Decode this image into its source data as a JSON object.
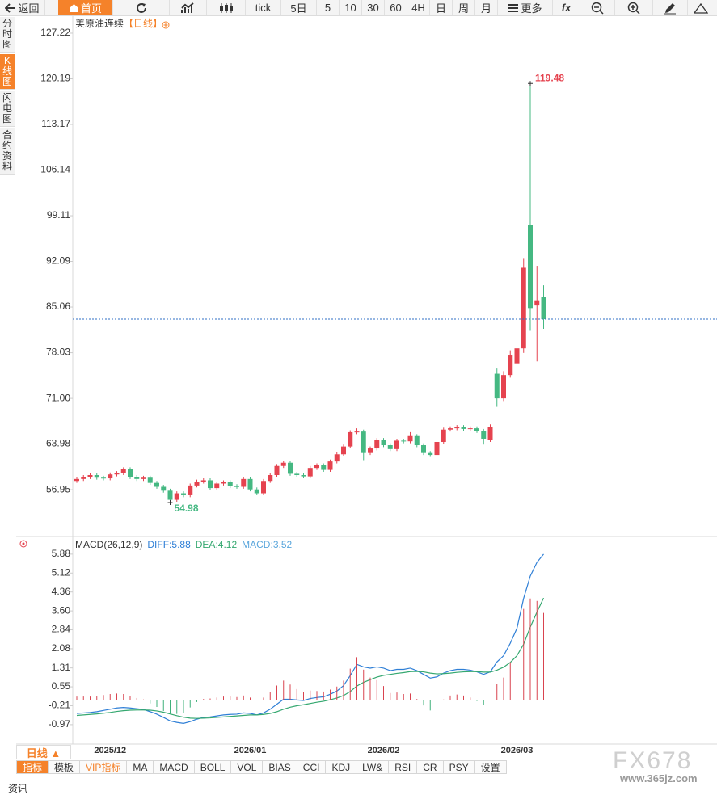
{
  "toolbar": {
    "back": "返回",
    "home": "首页",
    "periods": [
      "tick",
      "5日",
      "5",
      "10",
      "30",
      "60",
      "4H",
      "日",
      "周",
      "月"
    ],
    "more": "更多",
    "fx": "fx"
  },
  "side_tabs": [
    "分时图",
    "K线图",
    "闪电图",
    "合约资料"
  ],
  "chart_data": [
    {
      "type": "candlestick",
      "title": "美原油连续",
      "period": "【日线】",
      "categories": [
        null,
        null,
        null,
        null,
        null,
        "2025/12",
        null,
        null,
        null,
        null,
        null,
        null,
        null,
        null,
        null,
        null,
        null,
        null,
        null,
        null,
        null,
        null,
        null,
        null,
        null,
        null,
        "2026/01",
        null,
        null,
        null,
        null,
        null,
        null,
        null,
        null,
        null,
        null,
        null,
        null,
        null,
        null,
        null,
        null,
        null,
        null,
        null,
        "2026/02",
        null,
        null,
        null,
        null,
        null,
        null,
        null,
        null,
        null,
        null,
        null,
        null,
        null,
        null,
        null,
        null,
        null,
        null,
        null,
        "2026/03",
        null,
        null,
        null,
        null
      ],
      "open": [
        58.3,
        58.6,
        58.9,
        59.2,
        58.8,
        58.7,
        59.3,
        59.5,
        60.1,
        58.9,
        58.6,
        58.8,
        58.0,
        57.4,
        56.8,
        55.4,
        56.4,
        56.1,
        57.6,
        58.2,
        58.4,
        57.2,
        57.9,
        58.1,
        57.5,
        57.4,
        58.6,
        57.0,
        56.4,
        58.3,
        59.2,
        60.6,
        61.1,
        59.4,
        59.2,
        59.0,
        60.3,
        60.7,
        60.0,
        61.3,
        62.4,
        63.6,
        65.8,
        65.9,
        62.6,
        63.3,
        64.6,
        63.8,
        63.2,
        64.5,
        64.4,
        65.2,
        63.8,
        62.6,
        62.3,
        64.3,
        66.2,
        66.4,
        66.6,
        66.3,
        66.4,
        66.0,
        64.6,
        74.8,
        71.0,
        74.6,
        76.4,
        78.7,
        97.7,
        85.3,
        86.6
      ],
      "high": [
        58.9,
        59.2,
        59.5,
        59.5,
        59.1,
        59.6,
        59.8,
        60.4,
        60.4,
        59.2,
        59.1,
        59.1,
        58.3,
        57.7,
        57.1,
        56.7,
        56.7,
        57.9,
        58.5,
        58.7,
        58.7,
        58.2,
        58.4,
        58.4,
        57.8,
        58.9,
        58.9,
        57.3,
        58.6,
        59.5,
        60.9,
        61.4,
        61.4,
        59.7,
        59.5,
        60.6,
        61.0,
        61.0,
        61.6,
        62.7,
        63.9,
        66.1,
        66.4,
        66.2,
        63.6,
        64.9,
        64.9,
        64.1,
        64.8,
        64.8,
        65.8,
        65.5,
        64.1,
        62.9,
        64.6,
        66.5,
        66.7,
        66.9,
        66.9,
        66.7,
        66.7,
        66.3,
        67.0,
        75.6,
        75.2,
        78.4,
        80.2,
        92.6,
        119.48,
        91.4,
        88.4
      ],
      "low": [
        58.0,
        58.3,
        58.6,
        58.5,
        58.4,
        58.4,
        59.0,
        59.2,
        58.6,
        58.3,
        58.3,
        57.7,
        57.1,
        56.5,
        54.98,
        55.1,
        55.8,
        55.8,
        57.3,
        57.9,
        56.9,
        56.9,
        57.6,
        57.2,
        57.1,
        57.1,
        56.7,
        56.1,
        56.1,
        58.0,
        58.9,
        60.3,
        59.1,
        58.9,
        58.7,
        58.7,
        60.0,
        59.7,
        59.7,
        61.0,
        62.1,
        63.3,
        65.5,
        61.5,
        62.3,
        63.0,
        63.5,
        62.9,
        62.9,
        64.1,
        64.1,
        63.5,
        62.3,
        62.0,
        62.0,
        64.0,
        65.9,
        66.1,
        66.0,
        66.0,
        65.7,
        63.9,
        64.3,
        69.7,
        70.6,
        74.2,
        75.8,
        78.0,
        81.4,
        76.7,
        81.7
      ],
      "close": [
        58.6,
        58.9,
        59.2,
        58.8,
        58.7,
        59.3,
        59.5,
        60.1,
        58.9,
        58.6,
        58.8,
        58.0,
        57.4,
        56.8,
        55.4,
        56.4,
        56.1,
        57.6,
        58.2,
        58.4,
        57.2,
        57.9,
        58.1,
        57.5,
        57.4,
        58.6,
        57.0,
        56.4,
        58.3,
        59.2,
        60.6,
        61.1,
        59.4,
        59.2,
        59.0,
        60.3,
        60.7,
        60.0,
        61.3,
        62.4,
        63.6,
        65.8,
        65.9,
        62.6,
        63.3,
        64.6,
        63.8,
        63.2,
        64.5,
        64.4,
        65.2,
        63.8,
        62.6,
        62.3,
        64.3,
        66.2,
        66.4,
        66.6,
        66.3,
        66.4,
        66.0,
        64.8,
        66.6,
        71.0,
        74.6,
        77.6,
        78.7,
        91.1,
        84.9,
        86.1,
        83.2
      ],
      "up_color": "#e5434f",
      "down_color": "#45b882",
      "last_line_color": "#2f6fc4",
      "ylim": [
        50.0,
        129.58
      ],
      "yticks": [
        56.95,
        63.98,
        {
          "value": 71,
          "label": "71.00"
        },
        78.03,
        85.06,
        92.09,
        99.11,
        106.14,
        113.17,
        120.19,
        127.22
      ]
    },
    {
      "type": "macd",
      "title": "MACD(26,12,9)",
      "separator": ":",
      "series": [
        {
          "name": "DIFF",
          "type": "line",
          "color": "#2f7fd6",
          "values": [
            -0.52,
            -0.5,
            -0.48,
            -0.45,
            -0.4,
            -0.35,
            -0.3,
            -0.28,
            -0.3,
            -0.33,
            -0.36,
            -0.45,
            -0.55,
            -0.68,
            -0.82,
            -0.88,
            -0.92,
            -0.85,
            -0.75,
            -0.68,
            -0.66,
            -0.62,
            -0.58,
            -0.56,
            -0.55,
            -0.5,
            -0.52,
            -0.58,
            -0.5,
            -0.35,
            -0.15,
            0.05,
            0.05,
            0.02,
            0.0,
            0.08,
            0.12,
            0.15,
            0.25,
            0.38,
            0.6,
            1.0,
            1.45,
            1.35,
            1.3,
            1.35,
            1.3,
            1.2,
            1.25,
            1.25,
            1.3,
            1.2,
            1.05,
            0.9,
            0.95,
            1.1,
            1.2,
            1.25,
            1.25,
            1.22,
            1.15,
            1.05,
            1.15,
            1.55,
            1.8,
            2.3,
            2.9,
            4.1,
            5.0,
            5.55,
            5.88
          ]
        },
        {
          "name": "DEA",
          "type": "line",
          "color": "#35a870",
          "values": [
            -0.6,
            -0.58,
            -0.56,
            -0.54,
            -0.51,
            -0.48,
            -0.44,
            -0.41,
            -0.39,
            -0.38,
            -0.38,
            -0.39,
            -0.42,
            -0.47,
            -0.54,
            -0.61,
            -0.67,
            -0.71,
            -0.72,
            -0.71,
            -0.7,
            -0.68,
            -0.66,
            -0.64,
            -0.62,
            -0.6,
            -0.58,
            -0.58,
            -0.56,
            -0.52,
            -0.45,
            -0.35,
            -0.27,
            -0.21,
            -0.17,
            -0.12,
            -0.07,
            -0.03,
            0.03,
            0.1,
            0.2,
            0.36,
            0.58,
            0.73,
            0.84,
            0.94,
            1.01,
            1.05,
            1.09,
            1.12,
            1.16,
            1.17,
            1.15,
            1.1,
            1.07,
            1.08,
            1.1,
            1.13,
            1.15,
            1.16,
            1.16,
            1.14,
            1.14,
            1.22,
            1.34,
            1.53,
            1.8,
            2.26,
            2.95,
            3.55,
            4.12
          ]
        },
        {
          "name": "MACD",
          "type": "bar",
          "color": "#5aa6dc",
          "up_color": "#d9434f",
          "down_color": "#3fb07a",
          "values": [
            0.16,
            0.16,
            0.16,
            0.18,
            0.22,
            0.26,
            0.28,
            0.26,
            0.18,
            0.1,
            0.04,
            -0.12,
            -0.26,
            -0.42,
            -0.56,
            -0.54,
            -0.5,
            -0.28,
            -0.06,
            0.06,
            0.08,
            0.12,
            0.16,
            0.16,
            0.14,
            0.2,
            0.12,
            0.0,
            0.12,
            0.34,
            0.6,
            0.8,
            0.64,
            0.46,
            0.34,
            0.4,
            0.38,
            0.36,
            0.44,
            0.56,
            0.8,
            1.28,
            1.74,
            1.24,
            0.92,
            0.82,
            0.58,
            0.3,
            0.32,
            0.26,
            0.28,
            0.06,
            -0.2,
            -0.4,
            -0.24,
            0.04,
            0.2,
            0.24,
            0.2,
            0.12,
            -0.02,
            -0.18,
            0.02,
            0.66,
            0.92,
            1.54,
            2.2,
            3.68,
            4.1,
            4.0,
            3.52
          ]
        }
      ],
      "ylim": [
        -1.72,
        6.46
      ],
      "yticks": [
        -0.97,
        -0.21,
        0.55,
        1.31,
        2.08,
        2.84,
        {
          "value": 3.6,
          "label": "3.60"
        },
        4.36,
        5.12,
        5.88
      ]
    }
  ],
  "bottom": {
    "period": "日线 ▲",
    "tabs": [
      "指标",
      "模板",
      "VIP指标",
      "MA",
      "MACD",
      "BOLL",
      "VOL",
      "BIAS",
      "CCI",
      "KDJ",
      "LW&",
      "RSI",
      "CR",
      "PSY",
      "设置"
    ]
  },
  "watermark": {
    "brand": "FX678",
    "site": "www.365jz.com"
  },
  "footer": "资讯"
}
